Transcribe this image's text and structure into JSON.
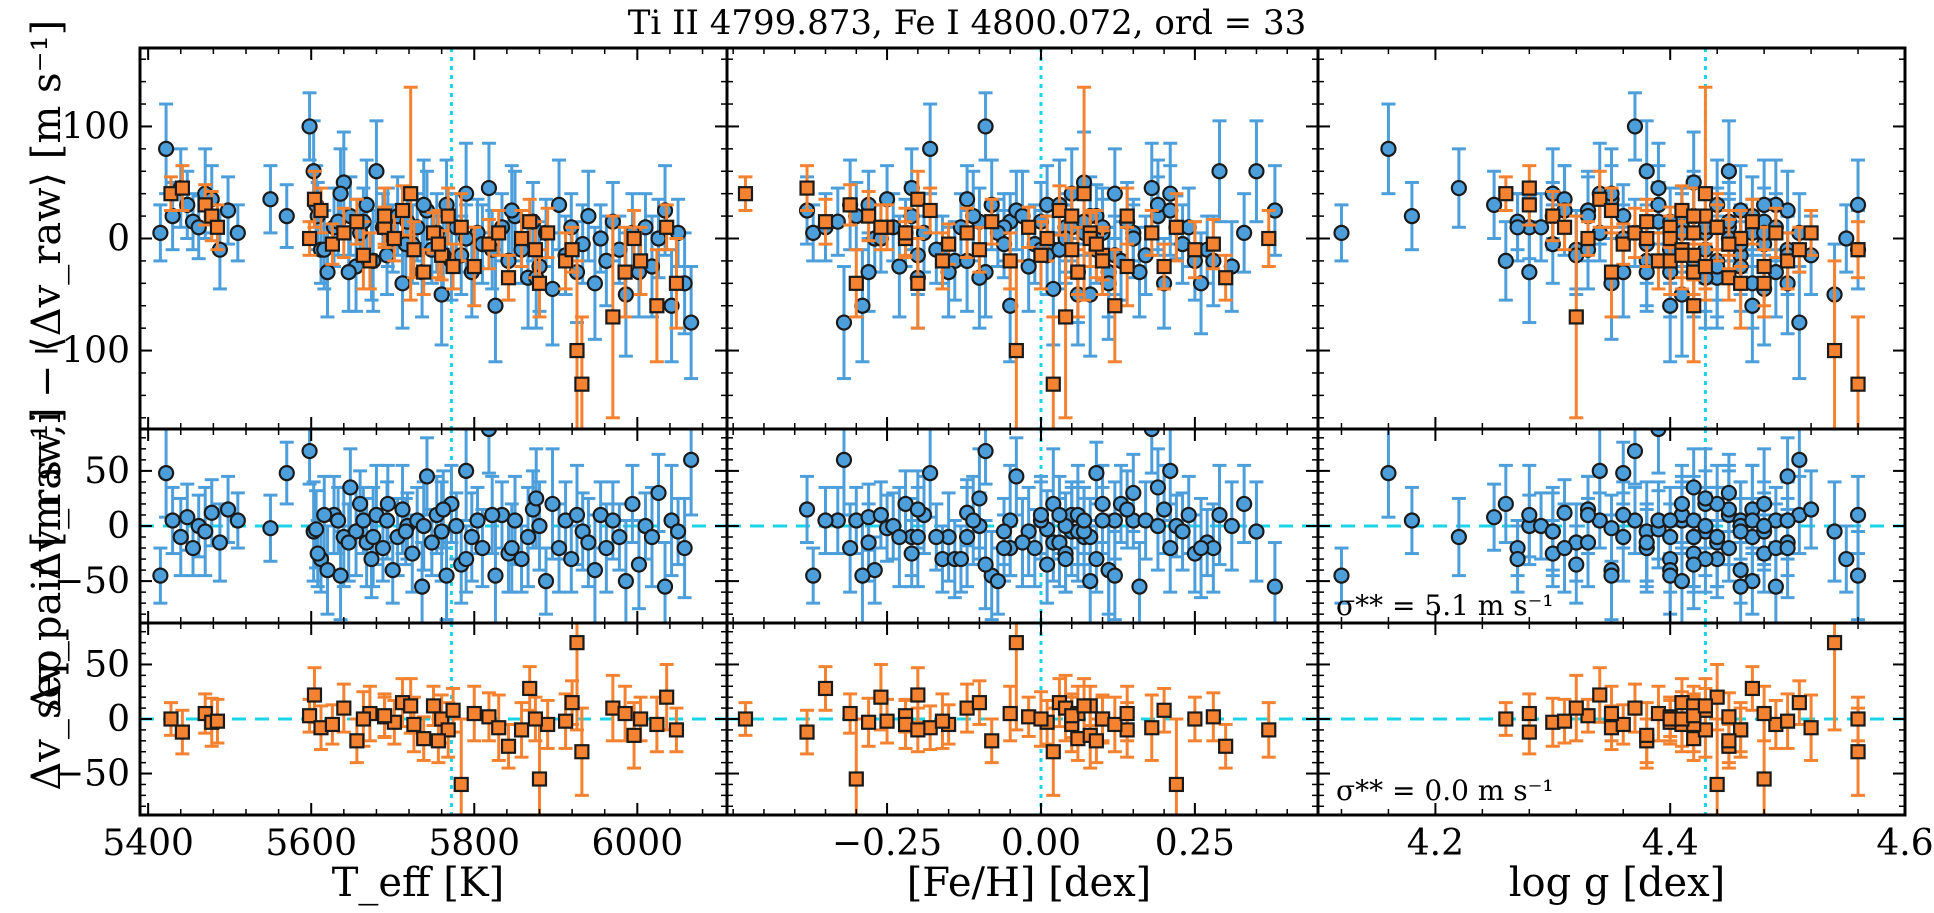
{
  "chart_data": {
    "type": "scatter",
    "title": "Ti II 4799.873, Fe I 4800.072, ord = 33",
    "columns": [
      {
        "name": "teff",
        "xlabel": "T_eff [K]",
        "xlim": [
          5390,
          6110
        ],
        "xticks": [
          5400,
          5600,
          5800,
          6000
        ],
        "xtick_labels": [
          "5400",
          "5600",
          "5800",
          "6000"
        ],
        "reference_x": 5772
      },
      {
        "name": "feh",
        "xlabel": "[Fe/H] [dex]",
        "xlim": [
          -0.51,
          0.45
        ],
        "xticks": [
          -0.25,
          0.0,
          0.25
        ],
        "xtick_labels": [
          "−0.25",
          "0.00",
          "0.25"
        ],
        "reference_x": 0.0
      },
      {
        "name": "logg",
        "xlabel": "log g [dex]",
        "xlim": [
          4.1,
          4.6
        ],
        "xticks": [
          4.2,
          4.4,
          4.6
        ],
        "xtick_labels": [
          "4.2",
          "4.4",
          "4.6"
        ],
        "reference_x": 4.43
      }
    ],
    "rows": [
      {
        "name": "raw",
        "ylabel": "Δv_raw,i − ⟨Δv_raw⟩ [m s⁻¹]",
        "ylim": [
          -170,
          170
        ],
        "yticks": [
          -100,
          0,
          100
        ],
        "ytick_labels": [
          "−100",
          "0",
          "100"
        ],
        "reference_y": null,
        "series": [
          "pair-a",
          "pair-b"
        ]
      },
      {
        "name": "pair",
        "ylabel": "Δv_pair [m s⁻¹]",
        "ylim": [
          -88,
          88
        ],
        "yticks": [
          -50,
          0,
          50
        ],
        "ytick_labels": [
          "−50",
          "0",
          "50"
        ],
        "reference_y": 0,
        "series": [
          "pair-a"
        ],
        "annotation": "σ** = 5.1 m s⁻¹"
      },
      {
        "name": "sep",
        "ylabel": "Δv_sep",
        "ylim": [
          -88,
          88
        ],
        "yticks": [
          -50,
          0,
          50
        ],
        "ytick_labels": [
          "−50",
          "0",
          "50"
        ],
        "reference_y": 0,
        "series": [
          "pair-b"
        ],
        "annotation": "σ** = 0.0 m s⁻¹"
      }
    ],
    "series": [
      {
        "name": "pair-a",
        "marker": "circle",
        "color": "#4d9fdb",
        "edge": "#1a1a1a"
      },
      {
        "name": "pair-b",
        "marker": "square",
        "color": "#f58231",
        "edge": "#1a1a1a"
      }
    ],
    "data": {
      "teff": [
        5415,
        5422,
        5430,
        5440,
        5448,
        5455,
        5462,
        5470,
        5478,
        5488,
        5498,
        5510,
        5550,
        5570,
        5598,
        5603,
        5606,
        5612,
        5620,
        5628,
        5633,
        5640,
        5648,
        5655,
        5660,
        5668,
        5674,
        5680,
        5688,
        5693,
        5700,
        5706,
        5712,
        5718,
        5724,
        5730,
        5736,
        5742,
        5748,
        5754,
        5760,
        5766,
        5772,
        5778,
        5784,
        5790,
        5797,
        5804,
        5810,
        5818,
        5826,
        5834,
        5842,
        5850,
        5858,
        5866,
        5872,
        5880,
        5888,
        5896,
        5904,
        5912,
        5919,
        5926,
        5933,
        5940,
        5948,
        5955,
        5962,
        5970,
        5978,
        5986,
        5994,
        6002,
        6010,
        6018,
        6026,
        6034,
        6042,
        6050,
        6058,
        6066,
        5608,
        5616,
        5636,
        5646,
        5664,
        5676,
        5694,
        5716,
        5738,
        5762,
        5790,
        5822,
        5846,
        5876,
        5898,
        5915
      ],
      "feh": [
        -0.37,
        -0.18,
        -0.3,
        -0.21,
        -0.28,
        -0.05,
        0.22,
        0.05,
        -0.12,
        0.02,
        -0.38,
        0.15,
        -0.25,
        0.09,
        -0.09,
        0.35,
        0.01,
        -0.16,
        0.11,
        0.24,
        -0.33,
        0.07,
        0.19,
        -0.02,
        -0.22,
        0.03,
        -0.14,
        0.29,
        -0.06,
        0.12,
        -0.27,
        0.08,
        0.2,
        -0.1,
        0.04,
        -0.35,
        0.16,
        -0.04,
        0.27,
        -0.19,
        0.06,
        -0.08,
        0.13,
        -0.24,
        0.01,
        0.21,
        -0.15,
        0.1,
        -0.01,
        0.18,
        -0.29,
        0.05,
        0.25,
        -0.11,
        0.09,
        -0.2,
        0.14,
        0.31,
        -0.07,
        0.02,
        -0.31,
        0.17,
        -0.13,
        0.06,
        0.23,
        -0.03,
        0.11,
        -0.26,
        0.28,
        0.0,
        -0.17,
        0.08,
        0.33,
        -0.09,
        0.04,
        -0.23,
        0.15,
        0.38,
        -0.05,
        0.07,
        0.26,
        -0.32,
        -0.21,
        0.03,
        0.12,
        -0.28,
        0.07,
        -0.12,
        0.1,
        -0.06,
        0.19,
        -0.2,
        0.04,
        0.0,
        0.21,
        -0.1
      ],
      "logg": [
        4.12,
        4.16,
        4.18,
        4.22,
        4.25,
        4.27,
        4.28,
        4.3,
        4.31,
        4.32,
        4.33,
        4.34,
        4.35,
        4.36,
        4.37,
        4.38,
        4.39,
        4.4,
        4.4,
        4.41,
        4.41,
        4.42,
        4.42,
        4.43,
        4.43,
        4.44,
        4.44,
        4.45,
        4.45,
        4.46,
        4.46,
        4.47,
        4.47,
        4.48,
        4.48,
        4.49,
        4.49,
        4.5,
        4.5,
        4.51,
        4.54,
        4.56,
        4.26,
        4.29,
        4.32,
        4.34,
        4.36,
        4.37,
        4.38,
        4.39,
        4.4,
        4.41,
        4.42,
        4.42,
        4.43,
        4.44,
        4.45,
        4.46,
        4.47,
        4.48,
        4.49,
        4.5,
        4.27,
        4.28,
        4.3,
        4.33,
        4.35,
        4.36,
        4.38,
        4.39,
        4.4,
        4.41,
        4.41,
        4.42,
        4.43,
        4.44,
        4.45,
        4.46,
        4.47,
        4.48,
        4.5,
        4.51,
        4.3,
        4.33,
        4.35,
        4.38,
        4.4,
        4.42,
        4.44,
        4.46,
        4.48,
        4.52,
        4.55,
        4.56,
        4.31,
        4.43
      ],
      "raw_a": [
        5,
        80,
        20,
        45,
        30,
        15,
        10,
        40,
        35,
        -10,
        25,
        5,
        35,
        20,
        100,
        60,
        30,
        -10,
        -30,
        10,
        15,
        50,
        20,
        -25,
        5,
        30,
        -20,
        60,
        10,
        -15,
        0,
        20,
        -40,
        15,
        -5,
        10,
        -30,
        25,
        -10,
        5,
        -50,
        30,
        -20,
        10,
        -15,
        40,
        -30,
        5,
        -5,
        45,
        -60,
        10,
        -20,
        20,
        -10,
        -35,
        15,
        -25,
        5,
        -45,
        30,
        -15,
        10,
        -30,
        -5,
        20,
        -40,
        0,
        -20,
        15,
        -10,
        -50,
        5,
        -30,
        10,
        -25,
        0,
        25,
        -60,
        5,
        -40,
        -75,
        20,
        -10,
        40,
        -30,
        15,
        -20,
        10,
        -5,
        30,
        -15,
        0,
        -10,
        25,
        -35
      ],
      "err_a": [
        25,
        40,
        30,
        35,
        30,
        25,
        28,
        40,
        30,
        35,
        30,
        25,
        30,
        28,
        30,
        45,
        35,
        30,
        40,
        35,
        30,
        45,
        35,
        40,
        30,
        40,
        35,
        45,
        30,
        35,
        30,
        35,
        40,
        30,
        35,
        30,
        40,
        35,
        30,
        35,
        45,
        40,
        35,
        30,
        35,
        45,
        40,
        30,
        35,
        40,
        50,
        30,
        35,
        40,
        30,
        45,
        35,
        40,
        30,
        50,
        40,
        35,
        30,
        45,
        35,
        40,
        50,
        30,
        40,
        35,
        30,
        55,
        35,
        40,
        30,
        45,
        35,
        40,
        50,
        30,
        45,
        50,
        30,
        35,
        40,
        35,
        30,
        45,
        35,
        30,
        40,
        35,
        30,
        35,
        40,
        45
      ],
      "raw_b": [
        40,
        45,
        30,
        20,
        10,
        0,
        35,
        25,
        -5,
        5,
        15,
        -20,
        10,
        0,
        25,
        -10,
        -30,
        5,
        -15,
        20,
        -25,
        10,
        -5,
        -35,
        0,
        15,
        -40,
        5,
        -20,
        -10,
        -100,
        -130,
        -70,
        -30,
        0,
        -20,
        -60,
        10,
        -40,
        -15,
        20,
        40,
        -5,
        -25,
        5,
        -10
      ],
      "err_b": [
        15,
        20,
        18,
        22,
        20,
        15,
        25,
        20,
        18,
        22,
        20,
        25,
        18,
        20,
        22,
        25,
        20,
        18,
        22,
        25,
        20,
        30,
        22,
        20,
        25,
        20,
        30,
        22,
        25,
        20,
        80,
        60,
        90,
        40,
        25,
        30,
        50,
        20,
        40,
        30,
        25,
        95,
        30,
        35,
        20,
        25
      ],
      "pair_a": [
        -45,
        48,
        5,
        -10,
        8,
        -20,
        0,
        -5,
        12,
        -15,
        15,
        5,
        -2,
        48,
        68,
        -5,
        -3,
        -30,
        -40,
        10,
        5,
        -10,
        35,
        -5,
        20,
        -15,
        -30,
        10,
        -20,
        5,
        -40,
        -10,
        15,
        0,
        -25,
        5,
        -55,
        45,
        -15,
        10,
        -5,
        -45,
        20,
        0,
        -35,
        50,
        -10,
        5,
        -20,
        88,
        -45,
        10,
        -25,
        5,
        -30,
        -10,
        15,
        0,
        -50,
        20,
        -20,
        5,
        -30,
        10,
        -5,
        -15,
        -40,
        10,
        -20,
        5,
        -10,
        -50,
        20,
        -35,
        0,
        -10,
        30,
        -55,
        5,
        -5,
        -20,
        60,
        -25,
        10,
        -45,
        -15,
        5,
        -10,
        20,
        -5,
        0,
        15,
        -30,
        10,
        -20,
        25
      ],
      "err_a2": [
        25,
        40,
        30,
        35,
        30,
        25,
        28,
        40,
        30,
        35,
        30,
        25,
        30,
        28,
        30,
        45,
        35,
        30,
        40,
        35,
        30,
        45,
        35,
        40,
        30,
        40,
        35,
        45,
        30,
        35,
        30,
        35,
        40,
        30,
        35,
        30,
        40,
        35,
        30,
        35,
        45,
        40,
        35,
        30,
        35,
        45,
        40,
        30,
        35,
        40,
        50,
        30,
        35,
        40,
        30,
        45,
        35,
        40,
        30,
        50,
        40,
        35,
        30,
        45,
        35,
        40,
        50,
        30,
        40,
        35,
        30,
        55,
        35,
        40,
        30,
        45,
        35,
        40,
        50,
        30,
        45,
        50,
        30,
        35,
        40,
        35,
        30,
        45,
        35,
        30,
        40,
        35,
        30,
        35,
        40,
        45
      ],
      "sep_b": [
        0,
        -12,
        5,
        -3,
        -2,
        3,
        22,
        -8,
        -5,
        10,
        -20,
        5,
        2,
        -3,
        15,
        -5,
        -18,
        12,
        0,
        -10,
        8,
        -60,
        2,
        -25,
        -10,
        28,
        -55,
        -5,
        -2,
        15,
        70,
        -30,
        10,
        5,
        -15,
        0,
        -5,
        20,
        -10,
        0,
        3,
        12,
        -20,
        5,
        -8,
        0
      ],
      "errs_b": [
        15,
        20,
        18,
        22,
        20,
        15,
        25,
        20,
        18,
        22,
        20,
        25,
        18,
        20,
        22,
        25,
        20,
        18,
        22,
        25,
        20,
        60,
        22,
        20,
        25,
        20,
        55,
        22,
        25,
        20,
        80,
        40,
        30,
        25,
        30,
        20,
        25,
        30,
        20,
        25,
        20,
        25,
        20,
        25,
        30,
        20
      ],
      "bx_teff": [
        5428,
        5442,
        5470,
        5478,
        5485,
        5598,
        5604,
        5612,
        5626,
        5640,
        5656,
        5672,
        5690,
        5702,
        5712,
        5726,
        5738,
        5750,
        5760,
        5768,
        5774,
        5784,
        5818,
        5842,
        5858,
        5868,
        5880,
        5890,
        5912,
        5920,
        5926,
        5932,
        5970,
        5985,
        5996,
        6004,
        6024,
        6036,
        6048,
        5664,
        5690,
        5722,
        5756,
        5800,
        5830,
        5875
      ],
      "bx_feh": [
        -0.48,
        -0.38,
        -0.31,
        -0.28,
        -0.25,
        -0.22,
        -0.2,
        -0.18,
        -0.15,
        -0.12,
        -0.08,
        -0.05,
        -0.02,
        0.01,
        0.03,
        0.05,
        0.06,
        0.08,
        0.1,
        0.14,
        0.2,
        0.22,
        0.28,
        0.3,
        0.37,
        -0.35,
        -0.3,
        -0.22,
        -0.16,
        -0.1,
        -0.04,
        0.02,
        0.04,
        0.06,
        0.08,
        0.1,
        0.12,
        -0.26,
        -0.2,
        0.0,
        0.05,
        0.07,
        0.09,
        0.14,
        0.18,
        0.25
      ],
      "bx_logg": [
        4.26,
        4.28,
        4.28,
        4.3,
        4.31,
        4.33,
        4.34,
        4.35,
        4.36,
        4.37,
        4.38,
        4.39,
        4.4,
        4.4,
        4.41,
        4.41,
        4.42,
        4.42,
        4.42,
        4.43,
        4.43,
        4.44,
        4.45,
        4.45,
        4.46,
        4.47,
        4.48,
        4.49,
        4.5,
        4.51,
        4.54,
        4.56,
        4.32,
        4.35,
        4.38,
        4.4,
        4.42,
        4.44,
        4.46,
        4.41,
        4.42,
        4.43,
        4.45,
        4.48,
        4.52,
        4.56
      ]
    }
  }
}
